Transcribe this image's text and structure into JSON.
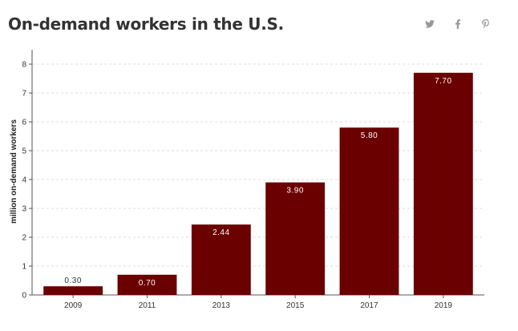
{
  "header": {
    "title": "On-demand workers in the U.S."
  },
  "share_icons": [
    {
      "name": "twitter-icon"
    },
    {
      "name": "facebook-icon"
    },
    {
      "name": "pinterest-icon"
    }
  ],
  "colors": {
    "bar": "#6b0000",
    "icon": "#999999",
    "grid": "#dddddd",
    "axis": "#555555"
  },
  "chart_data": {
    "type": "bar",
    "categories": [
      "2009",
      "2011",
      "2013",
      "2015",
      "2017",
      "2019"
    ],
    "values": [
      0.3,
      0.7,
      2.44,
      3.9,
      5.8,
      7.7
    ],
    "data_labels": [
      "0.30",
      "0.70",
      "2.44",
      "3.90",
      "5.80",
      "7.70"
    ],
    "xlabel": "",
    "ylabel": "million on-demand workers",
    "ylim": [
      0,
      8.5
    ],
    "yticks": [
      0,
      1,
      2,
      3,
      4,
      5,
      6,
      7,
      8
    ],
    "grid": true,
    "legend": "none"
  }
}
